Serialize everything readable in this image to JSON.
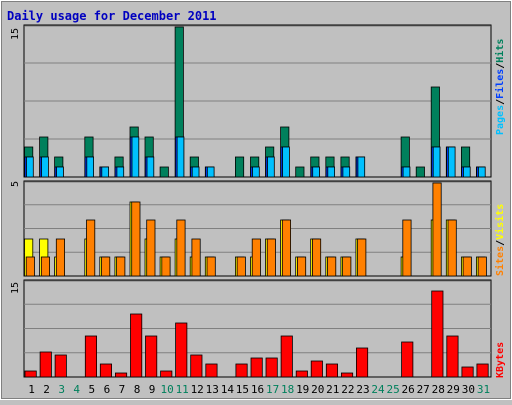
{
  "title": "Daily usage for December 2011",
  "legend": {
    "top": {
      "pages": "Pages",
      "files": "Files",
      "hits": "Hits",
      "sep": "/"
    },
    "middle": {
      "sites": "Sites",
      "visits": "Visits",
      "sep": "/"
    },
    "bottom": {
      "kbytes": "KBytes"
    }
  },
  "colors": {
    "background": "#c0c0c0",
    "panel": "#c0c0c0",
    "title": "#0000c0",
    "hits": "#00805c",
    "files": "#0040ff",
    "pages": "#00c0ff",
    "visits": "#ffff00",
    "sites": "#ff8000",
    "kbytes": "#ff0000",
    "weekend_label": "#00805c",
    "weekday_label": "#000000",
    "grid": "#808080"
  },
  "chart_data": [
    {
      "type": "bar",
      "panel": "top",
      "ymax_label": "15",
      "ylim": [
        0,
        15
      ],
      "categories": [
        "1",
        "2",
        "3",
        "4",
        "5",
        "6",
        "7",
        "8",
        "9",
        "10",
        "11",
        "12",
        "13",
        "14",
        "15",
        "16",
        "17",
        "18",
        "19",
        "20",
        "21",
        "22",
        "23",
        "24",
        "25",
        "26",
        "27",
        "28",
        "29",
        "30",
        "31"
      ],
      "series": [
        {
          "name": "Hits",
          "values": [
            3,
            4,
            2,
            0,
            4,
            1,
            2,
            5,
            4,
            1,
            15,
            2,
            1,
            0,
            2,
            2,
            3,
            5,
            1,
            2,
            2,
            2,
            2,
            0,
            0,
            4,
            1,
            9,
            3,
            3,
            1
          ]
        },
        {
          "name": "Files",
          "values": [
            2,
            2,
            1,
            0,
            2,
            1,
            1,
            4,
            2,
            0,
            4,
            1,
            1,
            0,
            0,
            1,
            2,
            3,
            0,
            1,
            1,
            1,
            2,
            0,
            0,
            1,
            0,
            3,
            3,
            1,
            1
          ]
        },
        {
          "name": "Pages",
          "values": [
            2,
            2,
            1,
            0,
            2,
            1,
            1,
            4,
            2,
            0,
            4,
            1,
            1,
            0,
            0,
            1,
            2,
            3,
            0,
            1,
            1,
            1,
            2,
            0,
            0,
            1,
            0,
            3,
            3,
            1,
            1
          ]
        }
      ]
    },
    {
      "type": "bar",
      "panel": "middle",
      "ymax_label": "5",
      "ylim": [
        0,
        5
      ],
      "categories": [
        "1",
        "2",
        "3",
        "4",
        "5",
        "6",
        "7",
        "8",
        "9",
        "10",
        "11",
        "12",
        "13",
        "14",
        "15",
        "16",
        "17",
        "18",
        "19",
        "20",
        "21",
        "22",
        "23",
        "24",
        "25",
        "26",
        "27",
        "28",
        "29",
        "30",
        "31"
      ],
      "series": [
        {
          "name": "Visits",
          "values": [
            2,
            2,
            1,
            0,
            2,
            1,
            1,
            4,
            2,
            1,
            2,
            1,
            1,
            0,
            1,
            1,
            2,
            3,
            1,
            2,
            1,
            1,
            2,
            0,
            0,
            1,
            0,
            3,
            3,
            1,
            1
          ]
        },
        {
          "name": "Sites",
          "values": [
            1,
            1,
            2,
            0,
            3,
            1,
            1,
            4,
            3,
            1,
            3,
            2,
            1,
            0,
            1,
            2,
            2,
            3,
            1,
            2,
            1,
            1,
            2,
            0,
            0,
            3,
            0,
            5,
            3,
            1,
            1
          ]
        }
      ]
    },
    {
      "type": "bar",
      "panel": "bottom",
      "ymax_label": "15",
      "ylim": [
        0,
        15
      ],
      "categories": [
        "1",
        "2",
        "3",
        "4",
        "5",
        "6",
        "7",
        "8",
        "9",
        "10",
        "11",
        "12",
        "13",
        "14",
        "15",
        "16",
        "17",
        "18",
        "19",
        "20",
        "21",
        "22",
        "23",
        "24",
        "25",
        "26",
        "27",
        "28",
        "29",
        "30",
        "31"
      ],
      "series": [
        {
          "name": "KBytes",
          "values": [
            1,
            4,
            3.5,
            0,
            6.5,
            2,
            0.6,
            10,
            6.5,
            1,
            8.5,
            3.5,
            2,
            0,
            2,
            3,
            3,
            6.5,
            1,
            2.5,
            2,
            0.6,
            4.5,
            0,
            0,
            5.5,
            0,
            13.5,
            6.5,
            1.5,
            2
          ]
        }
      ]
    }
  ],
  "weekend_days": [
    "3",
    "4",
    "10",
    "11",
    "17",
    "18",
    "24",
    "25",
    "31"
  ]
}
